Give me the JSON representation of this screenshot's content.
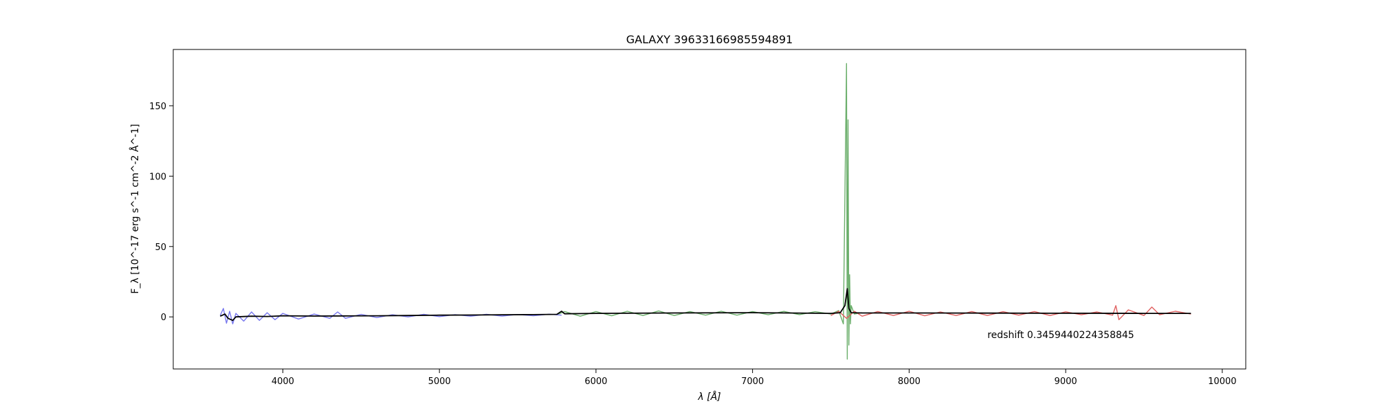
{
  "chart_data": {
    "type": "line",
    "title": "GALAXY 39633166985594891",
    "xlabel": "λ [Å]",
    "ylabel": "F_λ [10^-17 erg s^-1 cm^-2 Å^-1]",
    "xlim": [
      3300,
      10150
    ],
    "ylim": [
      -37,
      190
    ],
    "xticks": [
      {
        "value": 4000,
        "label": "4000"
      },
      {
        "value": 5000,
        "label": "5000"
      },
      {
        "value": 6000,
        "label": "6000"
      },
      {
        "value": 7000,
        "label": "7000"
      },
      {
        "value": 8000,
        "label": "8000"
      },
      {
        "value": 9000,
        "label": "9000"
      },
      {
        "value": 10000,
        "label": "10000"
      }
    ],
    "yticks": [
      {
        "value": 0,
        "label": "0"
      },
      {
        "value": 50,
        "label": "50"
      },
      {
        "value": 100,
        "label": "100"
      },
      {
        "value": 150,
        "label": "150"
      }
    ],
    "grid": false,
    "annotation": {
      "text": "redshift 0.3459440224358845",
      "x": 8500,
      "y": -12.5
    },
    "series": [
      {
        "color": "#7777ee",
        "x": [
          3600,
          3620,
          3640,
          3660,
          3680,
          3700,
          3750,
          3800,
          3850,
          3900,
          3950,
          4000,
          4100,
          4200,
          4300,
          4350,
          4400,
          4500,
          4600,
          4700,
          4800,
          4900,
          5000,
          5100,
          5200,
          5300,
          5400,
          5500,
          5600,
          5700,
          5780
        ],
        "y": [
          1.0,
          6.0,
          -4.5,
          4.0,
          -5.0,
          2.5,
          -3.0,
          3.5,
          -2.5,
          3.0,
          -2.0,
          2.5,
          -1.5,
          2.0,
          -1.0,
          3.5,
          -1.0,
          1.8,
          -0.5,
          1.5,
          0.0,
          1.8,
          0.2,
          1.6,
          0.5,
          1.8,
          0.6,
          1.7,
          0.8,
          1.9,
          1.2
        ]
      },
      {
        "color": "#6aae6a",
        "x": [
          5760,
          5800,
          5900,
          6000,
          6100,
          6200,
          6300,
          6400,
          6500,
          6600,
          6700,
          6800,
          6900,
          7000,
          7100,
          7200,
          7300,
          7400,
          7500,
          7550,
          7580,
          7600,
          7605,
          7610,
          7615,
          7620,
          7625,
          7630,
          7650,
          7700
        ],
        "y": [
          2.0,
          3.8,
          0.5,
          3.8,
          0.8,
          4.0,
          1.0,
          4.2,
          1.0,
          3.8,
          1.2,
          4.0,
          1.2,
          3.8,
          1.5,
          3.9,
          1.6,
          3.7,
          2.0,
          4.5,
          -5.0,
          180.0,
          -30.0,
          140.0,
          -20.0,
          30.0,
          -5.0,
          8.0,
          2.0,
          3.0
        ]
      },
      {
        "color": "#e06060",
        "x": [
          7500,
          7550,
          7600,
          7650,
          7700,
          7800,
          7900,
          8000,
          8100,
          8200,
          8300,
          8400,
          8500,
          8600,
          8700,
          8800,
          8900,
          9000,
          9100,
          9200,
          9300,
          9320,
          9340,
          9400,
          9500,
          9550,
          9600,
          9700,
          9800
        ],
        "y": [
          1.0,
          4.0,
          -1.0,
          4.0,
          0.5,
          3.8,
          1.0,
          4.0,
          0.8,
          3.5,
          1.0,
          3.8,
          1.0,
          3.7,
          1.2,
          3.8,
          1.0,
          3.6,
          1.5,
          3.5,
          1.2,
          8.0,
          -2.0,
          5.0,
          1.0,
          7.0,
          1.5,
          4.0,
          2.0
        ]
      },
      {
        "color": "#000000",
        "x": [
          3600,
          3630,
          3650,
          3680,
          3700,
          3800,
          3900,
          4000,
          4200,
          4400,
          4600,
          4800,
          5000,
          5200,
          5400,
          5600,
          5750,
          5780,
          5800,
          6000,
          6500,
          7000,
          7500,
          7560,
          7590,
          7605,
          7615,
          7630,
          7700,
          8000,
          8500,
          9000,
          9500,
          9800
        ],
        "y": [
          0.5,
          2.0,
          -1.0,
          -2.5,
          0.0,
          0.5,
          0.3,
          0.8,
          0.6,
          0.7,
          0.8,
          1.0,
          1.2,
          1.3,
          1.5,
          1.6,
          1.8,
          4.0,
          2.2,
          2.5,
          2.8,
          3.0,
          2.5,
          3.0,
          8.0,
          20.0,
          6.0,
          3.0,
          2.8,
          2.8,
          2.7,
          2.6,
          2.5,
          2.5
        ]
      }
    ]
  }
}
